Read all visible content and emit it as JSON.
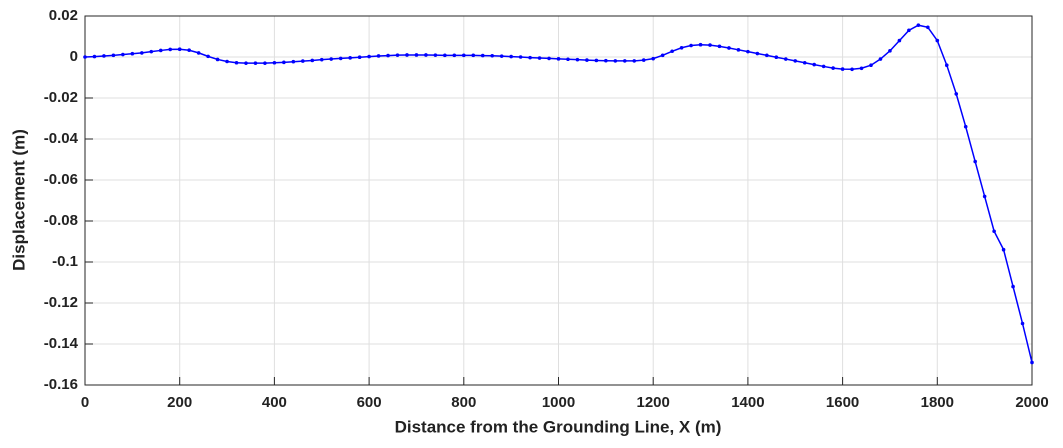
{
  "chart_data": {
    "type": "line",
    "xlabel": "Distance from the Grounding Line, X (m)",
    "ylabel": "Displacement (m)",
    "x": [
      0,
      20,
      40,
      60,
      80,
      100,
      120,
      140,
      160,
      180,
      200,
      220,
      240,
      260,
      280,
      300,
      320,
      340,
      360,
      380,
      400,
      420,
      440,
      460,
      480,
      500,
      520,
      540,
      560,
      580,
      600,
      620,
      640,
      660,
      680,
      700,
      720,
      740,
      760,
      780,
      800,
      820,
      840,
      860,
      880,
      900,
      920,
      940,
      960,
      980,
      1000,
      1020,
      1040,
      1060,
      1080,
      1100,
      1120,
      1140,
      1160,
      1180,
      1200,
      1220,
      1240,
      1260,
      1280,
      1300,
      1320,
      1340,
      1360,
      1380,
      1400,
      1420,
      1440,
      1460,
      1480,
      1500,
      1520,
      1540,
      1560,
      1580,
      1600,
      1620,
      1640,
      1660,
      1680,
      1700,
      1720,
      1740,
      1760,
      1780,
      1800,
      1820,
      1840,
      1860,
      1880,
      1900,
      1920,
      1940,
      1960,
      1980,
      2000
    ],
    "series": [
      {
        "name": "Displacement",
        "color": "#0000ff",
        "values": [
          0,
          0.0002,
          0.0005,
          0.0008,
          0.0012,
          0.0016,
          0.002,
          0.0026,
          0.0032,
          0.0037,
          0.0038,
          0.0033,
          0.002,
          0.0003,
          -0.0012,
          -0.0022,
          -0.0028,
          -0.003,
          -0.003,
          -0.003,
          -0.0028,
          -0.0026,
          -0.0023,
          -0.002,
          -0.0017,
          -0.0013,
          -0.001,
          -0.0007,
          -0.0004,
          -0.0001,
          0.0002,
          0.0005,
          0.0007,
          0.0009,
          0.001,
          0.001,
          0.001,
          0.0009,
          0.0008,
          0.0008,
          0.0008,
          0.0008,
          0.0007,
          0.0006,
          0.0004,
          0.0002,
          0,
          -0.0003,
          -0.0005,
          -0.0007,
          -0.0009,
          -0.0011,
          -0.0013,
          -0.0015,
          -0.0017,
          -0.0018,
          -0.0019,
          -0.0019,
          -0.0019,
          -0.0015,
          -0.0008,
          0.0008,
          0.0028,
          0.0045,
          0.0056,
          0.006,
          0.0058,
          0.0052,
          0.0044,
          0.0035,
          0.0026,
          0.0017,
          0.0008,
          -0.0001,
          -0.001,
          -0.0019,
          -0.0028,
          -0.0037,
          -0.0046,
          -0.0054,
          -0.0059,
          -0.006,
          -0.0055,
          -0.004,
          -0.001,
          0.003,
          0.008,
          0.013,
          0.0155,
          0.0145,
          0.008,
          -0.004,
          -0.018,
          -0.034,
          -0.051,
          -0.068,
          -0.085,
          -0.094,
          -0.112,
          -0.13,
          -0.149
        ]
      }
    ],
    "xlim": [
      0,
      2000
    ],
    "xticks": [
      0,
      200,
      400,
      600,
      800,
      1000,
      1200,
      1400,
      1600,
      1800,
      2000
    ],
    "ylim": [
      -0.16,
      0.02
    ],
    "yticks": [
      0.02,
      0,
      -0.02,
      -0.04,
      -0.06,
      -0.08,
      -0.1,
      -0.12,
      -0.14,
      -0.16
    ],
    "grid": true
  }
}
